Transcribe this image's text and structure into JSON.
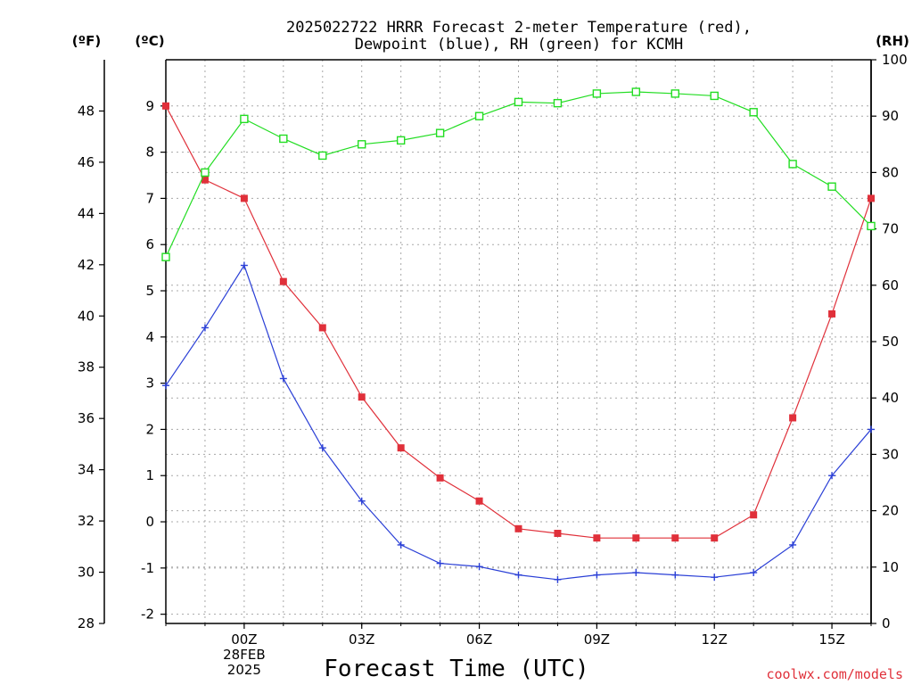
{
  "chart_data": {
    "type": "line",
    "title_lines": [
      "2025022722 HRRR Forecast 2-meter Temperature (red),",
      "Dewpoint (blue), RH (green) for KCMH"
    ],
    "xlabel": "Forecast Time (UTC)",
    "credit": "coolwx.com/models",
    "units": {
      "left_outer": "(ºF)",
      "left_inner": "(ºC)",
      "right": "(RH)"
    },
    "x": [
      -2,
      -1,
      0,
      1,
      2,
      3,
      4,
      5,
      6,
      7,
      8,
      9,
      10,
      11,
      12,
      13,
      14,
      15,
      16
    ],
    "xlim": [
      -2,
      16
    ],
    "x_ticks": [
      {
        "x": 0,
        "lines": [
          "00Z",
          "28FEB",
          "2025"
        ]
      },
      {
        "x": 3,
        "lines": [
          "03Z"
        ]
      },
      {
        "x": 6,
        "lines": [
          "06Z"
        ]
      },
      {
        "x": 9,
        "lines": [
          "09Z"
        ]
      },
      {
        "x": 12,
        "lines": [
          "12Z"
        ]
      },
      {
        "x": 15,
        "lines": [
          "15Z"
        ]
      }
    ],
    "ylim_c": [
      -2.2,
      10
    ],
    "yticks_c": [
      -2,
      -1,
      0,
      1,
      2,
      3,
      4,
      5,
      6,
      7,
      8,
      9
    ],
    "ylim_f": [
      28,
      50
    ],
    "yticks_f": [
      28,
      30,
      32,
      34,
      36,
      38,
      40,
      42,
      44,
      46,
      48
    ],
    "ylim_rh": [
      0,
      100
    ],
    "yticks_rh": [
      0,
      10,
      20,
      30,
      40,
      50,
      60,
      70,
      80,
      90,
      100
    ],
    "grid": true,
    "series": [
      {
        "name": "Temperature (red)",
        "axis": "c",
        "marker": "filled-square",
        "color": "#e0303a",
        "values": [
          9.0,
          7.4,
          7.0,
          5.2,
          4.2,
          2.7,
          1.6,
          0.95,
          0.45,
          -0.15,
          -0.25,
          -0.35,
          -0.35,
          -0.35,
          -0.35,
          0.15,
          2.25,
          4.5,
          7.0
        ]
      },
      {
        "name": "Dewpoint (blue)",
        "axis": "c",
        "marker": "plus",
        "color": "#2a3fd6",
        "values": [
          2.95,
          4.2,
          5.55,
          3.1,
          1.6,
          0.45,
          -0.5,
          -0.9,
          -0.97,
          -1.15,
          -1.25,
          -1.15,
          -1.1,
          -1.15,
          -1.2,
          -1.1,
          -0.5,
          1.0,
          2.0
        ]
      },
      {
        "name": "RH (green)",
        "axis": "rh",
        "marker": "open-square",
        "color": "#22dd22",
        "values": [
          65,
          80,
          89.5,
          86,
          83,
          85,
          85.7,
          87,
          90,
          92.5,
          92.3,
          94,
          94.3,
          94,
          93.6,
          90.7,
          81.5,
          77.5,
          70.5
        ]
      }
    ]
  }
}
